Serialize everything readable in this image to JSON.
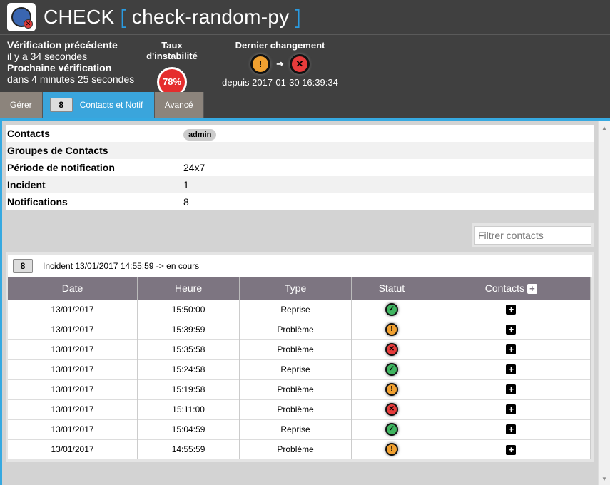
{
  "header": {
    "app": "CHECK",
    "check_name": "check-random-py"
  },
  "info": {
    "prev_label": "Vérification précédente",
    "prev_value": "il y a 34 secondes",
    "next_label": "Prochaine vérification",
    "next_value": "dans 4 minutes 25 secondes"
  },
  "instability": {
    "label": "Taux d'instabilité",
    "value": "78%"
  },
  "last_change": {
    "label": "Dernier changement",
    "from": "warning",
    "to": "critical",
    "since": "depuis 2017-01-30 16:39:34"
  },
  "tabs": [
    {
      "label": "Gérer"
    },
    {
      "label": "Contacts et Notif",
      "badge": "8",
      "active": true
    },
    {
      "label": "Avancé"
    }
  ],
  "props": [
    {
      "k": "Contacts",
      "v": "admin"
    },
    {
      "k": "Groupes de Contacts",
      "v": ""
    },
    {
      "k": "Période de notification",
      "v": "24x7"
    },
    {
      "k": "Incident",
      "v": "1"
    },
    {
      "k": "Notifications",
      "v": "8"
    }
  ],
  "filter": {
    "placeholder": "Filtrer contacts"
  },
  "incident": {
    "badge": "8",
    "title": "Incident 13/01/2017 14:55:59 -> en cours",
    "columns": [
      "Date",
      "Heure",
      "Type",
      "Statut",
      "Contacts"
    ],
    "rows": [
      {
        "date": "13/01/2017",
        "time": "15:50:00",
        "type": "Reprise",
        "status": "ok"
      },
      {
        "date": "13/01/2017",
        "time": "15:39:59",
        "type": "Problème",
        "status": "warning"
      },
      {
        "date": "13/01/2017",
        "time": "15:35:58",
        "type": "Problème",
        "status": "critical"
      },
      {
        "date": "13/01/2017",
        "time": "15:24:58",
        "type": "Reprise",
        "status": "ok"
      },
      {
        "date": "13/01/2017",
        "time": "15:19:58",
        "type": "Problème",
        "status": "warning"
      },
      {
        "date": "13/01/2017",
        "time": "15:11:00",
        "type": "Problème",
        "status": "critical"
      },
      {
        "date": "13/01/2017",
        "time": "15:04:59",
        "type": "Reprise",
        "status": "ok"
      },
      {
        "date": "13/01/2017",
        "time": "14:55:59",
        "type": "Problème",
        "status": "warning"
      }
    ]
  }
}
